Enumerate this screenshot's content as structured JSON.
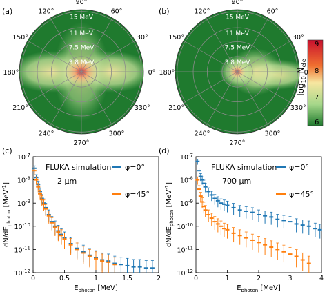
{
  "colors": {
    "polar_bg": "#1f7a2e",
    "blue_series": "#1f77b4",
    "orange_series": "#ff7f0e",
    "grid": "#8a8a8a"
  },
  "colorbar": {
    "label": "log10 N_ele",
    "label_main": "log",
    "label_sub": "10",
    "label_tail": " N",
    "label_tail_sub": "ele",
    "ticks": [
      "9",
      "8",
      "7",
      "6"
    ],
    "stops": [
      "#c8102e",
      "#f07030",
      "#f6e6a0",
      "#a6d78a",
      "#1f7a2e"
    ]
  },
  "chart_data": [
    {
      "type": "polar-heatmap",
      "panel": "(a)",
      "angle_labels": [
        "0°",
        "30°",
        "60°",
        "90°",
        "120°",
        "150°",
        "180°",
        "210°",
        "240°",
        "270°",
        "300°",
        "330°"
      ],
      "radial_labels": [
        "3.8 MeV",
        "7.5 MeV",
        "11 MeV",
        "15 MeV"
      ],
      "radial_values_MeV": [
        3.8,
        7.5,
        11,
        15
      ],
      "features": "symmetric emission lobes toward 0° and 180°, bright core at center"
    },
    {
      "type": "polar-heatmap",
      "panel": "(b)",
      "angle_labels": [
        "0°",
        "30°",
        "60°",
        "90°",
        "120°",
        "150°",
        "180°",
        "210°",
        "240°",
        "270°",
        "300°",
        "330°"
      ],
      "radial_labels": [
        "3.8 MeV",
        "7.5 MeV",
        "11 MeV",
        "15 MeV"
      ],
      "radial_values_MeV": [
        3.8,
        7.5,
        11,
        15
      ],
      "features": "forward lobe toward 0°, red core at center"
    },
    {
      "type": "scatter",
      "panel": "(c)",
      "annotation_1": "FLUKA simulation",
      "annotation_2": "2 μm",
      "xlabel": "E",
      "xlabel_sub": "photon",
      "xlabel_unit": " [MeV]",
      "ylabel": "dN/dE",
      "ylabel_sub": "photon",
      "ylabel_unit": " [MeV",
      "ylabel_sup": "-1",
      "ylabel_end": "]",
      "xlim": [
        0,
        2
      ],
      "ylim_log10": [
        -12,
        -7
      ],
      "x_ticks": [
        "0",
        "0.5",
        "1",
        "1.5",
        "2"
      ],
      "x_tick_values": [
        0,
        0.5,
        1,
        1.5,
        2
      ],
      "y_tick_exponents": [
        -7,
        -8,
        -9,
        -10,
        -11,
        -12
      ],
      "legend_position": "top-right",
      "series": [
        {
          "name": "φ=0°",
          "x": [
            0.02,
            0.05,
            0.08,
            0.11,
            0.14,
            0.17,
            0.2,
            0.25,
            0.3,
            0.35,
            0.4,
            0.45,
            0.5,
            0.6,
            0.7,
            0.8,
            0.9,
            1.0,
            1.1,
            1.2,
            1.3,
            1.4,
            1.5,
            1.6,
            1.7,
            1.8,
            1.9
          ],
          "log10y": [
            -7.5,
            -7.9,
            -8.2,
            -8.5,
            -8.8,
            -9.0,
            -9.2,
            -9.5,
            -9.8,
            -10.0,
            -10.2,
            -10.35,
            -10.5,
            -10.75,
            -10.95,
            -11.1,
            -11.25,
            -11.35,
            -11.45,
            -11.5,
            -11.6,
            -11.65,
            -11.7,
            -11.75,
            -11.75,
            -11.8,
            -11.8
          ]
        },
        {
          "name": "φ=45°",
          "x": [
            0.02,
            0.05,
            0.08,
            0.11,
            0.14,
            0.17,
            0.2,
            0.25,
            0.3,
            0.35,
            0.4,
            0.45,
            0.5,
            0.6,
            0.7,
            0.8,
            0.9,
            1.0,
            1.1,
            1.2,
            1.3
          ],
          "log10y": [
            -7.6,
            -8.0,
            -8.3,
            -8.6,
            -8.85,
            -9.05,
            -9.25,
            -9.55,
            -9.85,
            -10.05,
            -10.25,
            -10.4,
            -10.55,
            -10.8,
            -11.0,
            -11.15,
            -11.3,
            -11.4,
            -11.5,
            -11.55,
            -11.65
          ]
        }
      ]
    },
    {
      "type": "scatter",
      "panel": "(d)",
      "annotation_1": "FLUKA simulation",
      "annotation_2": "700 μm",
      "xlabel": "E",
      "xlabel_sub": "photon",
      "xlabel_unit": " [MeV]",
      "ylabel": "dN/dE",
      "ylabel_sub": "photon",
      "ylabel_unit": " [MeV",
      "ylabel_sup": "-1",
      "ylabel_end": "]",
      "xlim": [
        0,
        4
      ],
      "ylim_log10": [
        -12,
        -7
      ],
      "x_ticks": [
        "0",
        "1",
        "2",
        "3",
        "4"
      ],
      "x_tick_values": [
        0,
        1,
        2,
        3,
        4
      ],
      "y_tick_exponents": [
        -7,
        -8,
        -9,
        -10,
        -11,
        -12
      ],
      "legend_position": "top-right",
      "series": [
        {
          "name": "φ=0°",
          "x": [
            0.05,
            0.1,
            0.15,
            0.2,
            0.25,
            0.3,
            0.4,
            0.5,
            0.6,
            0.7,
            0.8,
            0.9,
            1.0,
            1.2,
            1.4,
            1.6,
            1.8,
            2.0,
            2.2,
            2.4,
            2.6,
            2.8,
            3.0,
            3.2,
            3.4,
            3.6,
            3.8,
            3.95
          ],
          "log10y": [
            -7.2,
            -7.6,
            -7.85,
            -8.0,
            -8.15,
            -8.3,
            -8.5,
            -8.65,
            -8.8,
            -8.9,
            -9.0,
            -9.05,
            -9.1,
            -9.2,
            -9.3,
            -9.35,
            -9.4,
            -9.5,
            -9.55,
            -9.6,
            -9.7,
            -9.75,
            -9.8,
            -9.9,
            -9.95,
            -10.0,
            -10.1,
            -10.15
          ]
        },
        {
          "name": "φ=45°",
          "x": [
            0.05,
            0.1,
            0.15,
            0.2,
            0.25,
            0.3,
            0.4,
            0.5,
            0.6,
            0.7,
            0.8,
            0.9,
            1.0,
            1.2,
            1.4,
            1.6,
            1.8,
            2.0,
            2.2,
            2.4,
            2.6,
            2.8,
            3.0,
            3.2,
            3.4,
            3.6
          ],
          "log10y": [
            -8.0,
            -8.4,
            -8.7,
            -8.95,
            -9.15,
            -9.3,
            -9.5,
            -9.65,
            -9.8,
            -9.9,
            -10.0,
            -10.1,
            -10.15,
            -10.3,
            -10.4,
            -10.5,
            -10.6,
            -10.7,
            -10.8,
            -10.9,
            -11.0,
            -11.1,
            -11.2,
            -11.3,
            -11.45,
            -11.6
          ]
        }
      ]
    }
  ]
}
